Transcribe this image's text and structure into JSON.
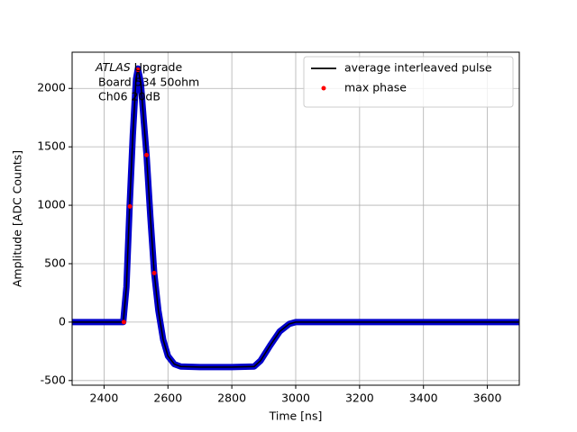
{
  "chart_data": {
    "type": "line",
    "xlabel": "Time [ns]",
    "ylabel": "Amplitude [ADC Counts]",
    "annotation": [
      "ATLAS",
      "Upgrade",
      "Board 534 50ohm",
      "Ch06 20dB"
    ],
    "xlim": [
      2300,
      3700
    ],
    "ylim": [
      -540,
      2310
    ],
    "xticks": [
      2400,
      2600,
      2800,
      3000,
      3200,
      3400,
      3600
    ],
    "yticks": [
      -500,
      0,
      500,
      1000,
      1500,
      2000
    ],
    "grid": true,
    "legend": "upper right",
    "series": [
      {
        "color": "#0000cc",
        "marker": "point",
        "x": [
          2300,
          2460,
          2470,
          2480,
          2490,
          2500,
          2506,
          2515,
          2525,
          2533,
          2545,
          2557,
          2570,
          2585,
          2600,
          2620,
          2640,
          2700,
          2800,
          2870,
          2890,
          2920,
          2950,
          2980,
          3000,
          3700
        ],
        "values": [
          0,
          0,
          300,
          990,
          1600,
          2080,
          2170,
          2050,
          1700,
          1430,
          900,
          420,
          100,
          -150,
          -290,
          -360,
          -380,
          -385,
          -385,
          -380,
          -330,
          -200,
          -80,
          -15,
          0,
          0
        ]
      },
      {
        "name": "average interleaved pulse",
        "color": "#000000",
        "marker": "line",
        "x": [
          2300,
          2460,
          2470,
          2480,
          2490,
          2500,
          2506,
          2515,
          2525,
          2533,
          2545,
          2557,
          2570,
          2585,
          2600,
          2620,
          2640,
          2700,
          2800,
          2870,
          2890,
          2920,
          2950,
          2980,
          3000,
          3700
        ],
        "values": [
          0,
          0,
          300,
          990,
          1600,
          2080,
          2170,
          2050,
          1700,
          1430,
          900,
          420,
          100,
          -150,
          -290,
          -360,
          -380,
          -385,
          -385,
          -380,
          -330,
          -200,
          -80,
          -15,
          0,
          0
        ]
      },
      {
        "name": "max phase",
        "color": "#ff0000",
        "marker": "dot",
        "x": [
          2462,
          2481,
          2506,
          2533,
          2557
        ],
        "values": [
          0,
          990,
          2160,
          1430,
          420
        ]
      }
    ]
  }
}
